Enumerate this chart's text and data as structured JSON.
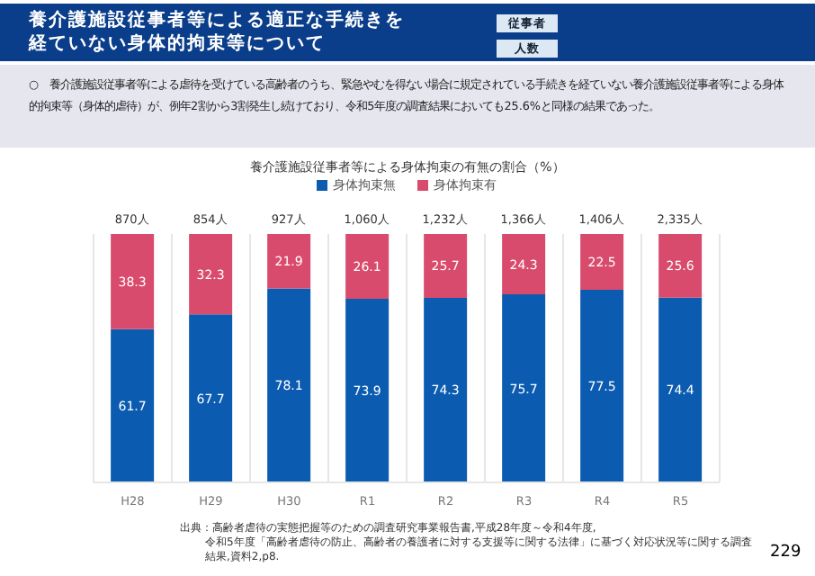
{
  "chart_data": {
    "type": "bar",
    "title": "養介護施設従事者等による適正な手続きを経ていない身体的拘束等について",
    "subtitle": "○　養介護施設従事者等による虐待を受けている高齢者のうち、緊急やむを得ない場合に規定されている手続きを経ていない養介護施設従事者等による身体的拘束等（身体的虐待）が、例年2割から3割発生し続けており、令和5年度の調査結果においても25.6%と同様の結果であった。",
    "categories": [
      "H28",
      "H29",
      "H30",
      "R1",
      "R2",
      "R3",
      "R4",
      "R5"
    ],
    "stacked": true,
    "data_labels": true,
    "legend": "top",
    "grid": "x",
    "series": [
      {
        "name": "身体拘束無",
        "color": "#0b5cb0",
        "values": [
          61.7,
          67.7,
          78.1,
          73.9,
          74.3,
          75.7,
          77.5,
          74.4
        ]
      },
      {
        "name": "身体拘束有",
        "color": "#d94b6c",
        "values": [
          38.3,
          32.3,
          21.9,
          26.1,
          25.7,
          24.3,
          22.5,
          25.6
        ]
      }
    ],
    "annotations": [
      "従事者",
      "人数",
      "養介護施設従事者等による身体拘束の有無の割合（%）",
      "出典：高齢者虐待の実態把握等のための調査研究事業報告書,平成28年度～令和4年度,",
      "令和5年度「高齢者虐待の防止、高齢者の養護者に対する支援等に関する法律」に基づく対応状況等に関する調査結果,資料2,p8.",
      "229",
      "870人",
      "854人",
      "927人",
      "1,060人",
      "1,232人",
      "1,366人",
      "1,406人",
      "2,335人"
    ]
  }
}
